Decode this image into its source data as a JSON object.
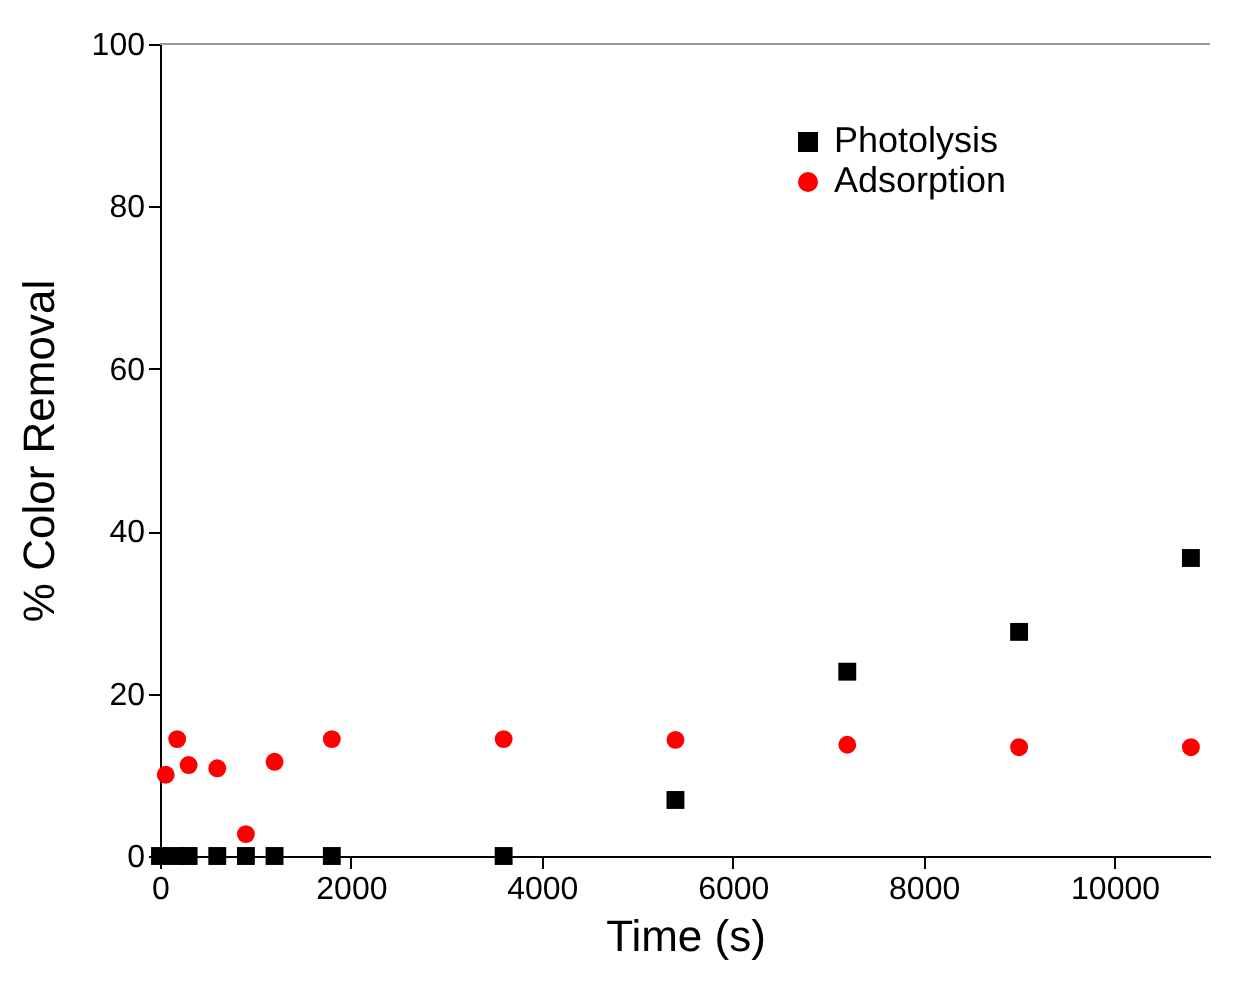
{
  "chart_data": {
    "type": "scatter",
    "xlabel": "Time (s)",
    "ylabel": "% Color Removal",
    "xlim": [
      0,
      11000
    ],
    "xticks": [
      0,
      2000,
      4000,
      6000,
      8000,
      10000
    ],
    "ylim": [
      0,
      100
    ],
    "yticks": [
      0,
      20,
      40,
      60,
      80,
      100
    ],
    "grid": false,
    "legend": "top right",
    "series": [
      {
        "name": "Photolysis",
        "color": "#000000",
        "marker": "square",
        "x": [
          0,
          180,
          300,
          600,
          900,
          1200,
          1800,
          3600,
          5400,
          7200,
          9000,
          10800
        ],
        "values": [
          0,
          0,
          0,
          0,
          0,
          0,
          0,
          0,
          6.9,
          22.7,
          27.6,
          36.7
        ]
      },
      {
        "name": "Adsorption",
        "color": "#ff0000",
        "marker": "circle",
        "x": [
          60,
          180,
          300,
          600,
          900,
          1200,
          1800,
          3600,
          5400,
          7200,
          9000,
          10800
        ],
        "values": [
          10.0,
          14.4,
          11.2,
          10.8,
          2.7,
          11.6,
          14.4,
          14.4,
          14.3,
          13.7,
          13.4,
          13.4
        ]
      }
    ]
  }
}
